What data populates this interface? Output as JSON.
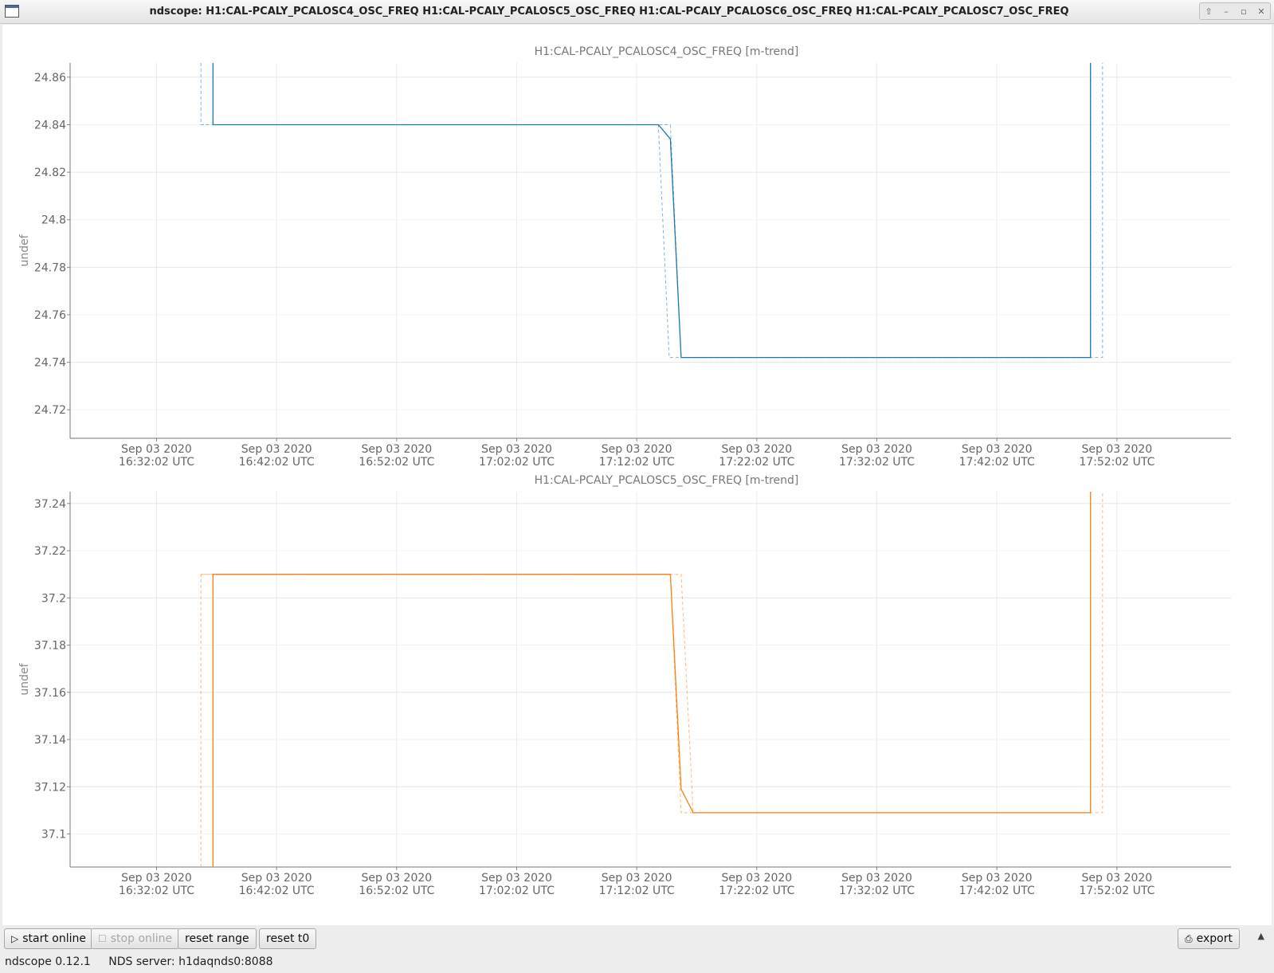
{
  "window": {
    "title": "ndscope: H1:CAL-PCALY_PCALOSC4_OSC_FREQ H1:CAL-PCALY_PCALOSC5_OSC_FREQ H1:CAL-PCALY_PCALOSC6_OSC_FREQ H1:CAL-PCALY_PCALOSC7_OSC_FREQ",
    "buttons": [
      "⇧",
      "–",
      "▫",
      "✕"
    ]
  },
  "toolbar": {
    "start_online": "start online",
    "stop_online": "stop online",
    "reset_range": "reset range",
    "reset_t0": "reset t0",
    "export": "export",
    "start_glyph": "▷",
    "stop_glyph": "☐",
    "export_glyph": "⎙",
    "collapse_glyph": "▲"
  },
  "status": {
    "version": "ndscope 0.12.1",
    "server": "NDS server: h1daqnds0:8088"
  },
  "chart_data": [
    {
      "type": "line",
      "title": "H1:CAL-PCALY_PCALOSC4_OSC_FREQ [m-trend]",
      "ylabel": "undef",
      "color": "#1f77b4",
      "xlim": [
        -7.2,
        89.5
      ],
      "ylim": [
        24.708,
        24.866
      ],
      "yticks": [
        24.72,
        24.74,
        24.76,
        24.78,
        24.8,
        24.82,
        24.84,
        24.86
      ],
      "ytick_labels": [
        "24.72",
        "24.74",
        "24.76",
        "24.78",
        "24.8",
        "24.82",
        "24.84",
        "24.86"
      ],
      "xticks": [
        0,
        10,
        20,
        30,
        40,
        50,
        60,
        70,
        80
      ],
      "xtick_labels": [
        [
          "Sep 03 2020",
          "16:32:02 UTC"
        ],
        [
          "Sep 03 2020",
          "16:42:02 UTC"
        ],
        [
          "Sep 03 2020",
          "16:52:02 UTC"
        ],
        [
          "Sep 03 2020",
          "17:02:02 UTC"
        ],
        [
          "Sep 03 2020",
          "17:12:02 UTC"
        ],
        [
          "Sep 03 2020",
          "17:22:02 UTC"
        ],
        [
          "Sep 03 2020",
          "17:32:02 UTC"
        ],
        [
          "Sep 03 2020",
          "17:42:02 UTC"
        ],
        [
          "Sep 03 2020",
          "17:52:02 UTC"
        ]
      ],
      "mean": {
        "x": [
          4.7,
          4.7,
          41.8,
          42.8,
          43.7,
          77.8,
          77.8
        ],
        "y": [
          24.866,
          24.84,
          24.84,
          24.834,
          24.742,
          24.742,
          24.866
        ]
      },
      "min": {
        "x": [
          3.7,
          3.7,
          4.7,
          41.8,
          42.7,
          43.7,
          77.8,
          77.8
        ],
        "y": [
          24.866,
          24.84,
          24.84,
          24.84,
          24.742,
          24.742,
          24.742,
          24.866
        ]
      },
      "max": {
        "x": [
          4.7,
          41.8,
          42.8,
          43.7,
          78.8,
          78.8
        ],
        "y": [
          24.84,
          24.84,
          24.84,
          24.742,
          24.742,
          24.866
        ]
      }
    },
    {
      "type": "line",
      "title": "H1:CAL-PCALY_PCALOSC5_OSC_FREQ [m-trend]",
      "ylabel": "undef",
      "color": "#ff7f0e",
      "xlim": [
        -7.2,
        89.5
      ],
      "ylim": [
        37.086,
        37.245
      ],
      "yticks": [
        37.1,
        37.12,
        37.14,
        37.16,
        37.18,
        37.2,
        37.22,
        37.24
      ],
      "ytick_labels": [
        "37.1",
        "37.12",
        "37.14",
        "37.16",
        "37.18",
        "37.2",
        "37.22",
        "37.24"
      ],
      "xticks": [
        0,
        10,
        20,
        30,
        40,
        50,
        60,
        70,
        80
      ],
      "xtick_labels": [
        [
          "Sep 03 2020",
          "16:32:02 UTC"
        ],
        [
          "Sep 03 2020",
          "16:42:02 UTC"
        ],
        [
          "Sep 03 2020",
          "16:52:02 UTC"
        ],
        [
          "Sep 03 2020",
          "17:02:02 UTC"
        ],
        [
          "Sep 03 2020",
          "17:12:02 UTC"
        ],
        [
          "Sep 03 2020",
          "17:22:02 UTC"
        ],
        [
          "Sep 03 2020",
          "17:32:02 UTC"
        ],
        [
          "Sep 03 2020",
          "17:42:02 UTC"
        ],
        [
          "Sep 03 2020",
          "17:52:02 UTC"
        ]
      ],
      "mean": {
        "x": [
          4.7,
          4.7,
          42.8,
          43.7,
          44.7,
          77.8,
          77.8
        ],
        "y": [
          37.086,
          37.21,
          37.21,
          37.119,
          37.109,
          37.109,
          37.245
        ]
      },
      "min": {
        "x": [
          3.7,
          3.7,
          42.8,
          43.7,
          44.7,
          77.8,
          77.8
        ],
        "y": [
          37.086,
          37.21,
          37.21,
          37.109,
          37.109,
          37.109,
          37.245
        ]
      },
      "max": {
        "x": [
          3.7,
          43.7,
          44.7,
          78.8,
          78.8
        ],
        "y": [
          37.21,
          37.21,
          37.109,
          37.109,
          37.245
        ]
      }
    }
  ]
}
